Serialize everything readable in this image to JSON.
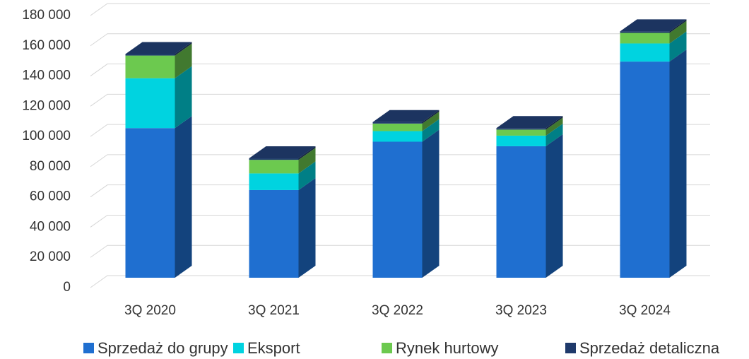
{
  "chart_data": {
    "type": "bar",
    "categories": [
      "3Q 2020",
      "3Q 2021",
      "3Q 2022",
      "3Q 2023",
      "3Q 2024"
    ],
    "series": [
      {
        "name": "Sprzedaż do grupy",
        "color": "#1f6fd0",
        "values": [
          99000,
          58000,
          90000,
          87000,
          143000
        ]
      },
      {
        "name": "Eksport",
        "color": "#00d3e0",
        "values": [
          33000,
          11000,
          7000,
          7000,
          12000
        ]
      },
      {
        "name": "Rynek hurtowy",
        "color": "#6cc94f",
        "values": [
          15000,
          9000,
          5000,
          4000,
          7000
        ]
      },
      {
        "name": "Sprzedaż detaliczna",
        "color": "#1f3a6b",
        "values": [
          1000,
          1000,
          1000,
          1000,
          1000
        ]
      }
    ],
    "ylim": [
      0,
      180000
    ],
    "yticks": [
      0,
      {
        "value": 20000,
        "label": "20 000"
      },
      {
        "value": 40000,
        "label": "40 000"
      },
      {
        "value": 60000,
        "label": "60 000"
      },
      {
        "value": 80000,
        "label": "80 000"
      },
      {
        "value": 100000,
        "label": "100 000"
      },
      {
        "value": 120000,
        "label": "120 000"
      },
      {
        "value": 140000,
        "label": "140 000"
      },
      {
        "value": 160000,
        "label": "160 000"
      },
      {
        "value": 180000,
        "label": "180 000"
      }
    ],
    "grid": true
  }
}
